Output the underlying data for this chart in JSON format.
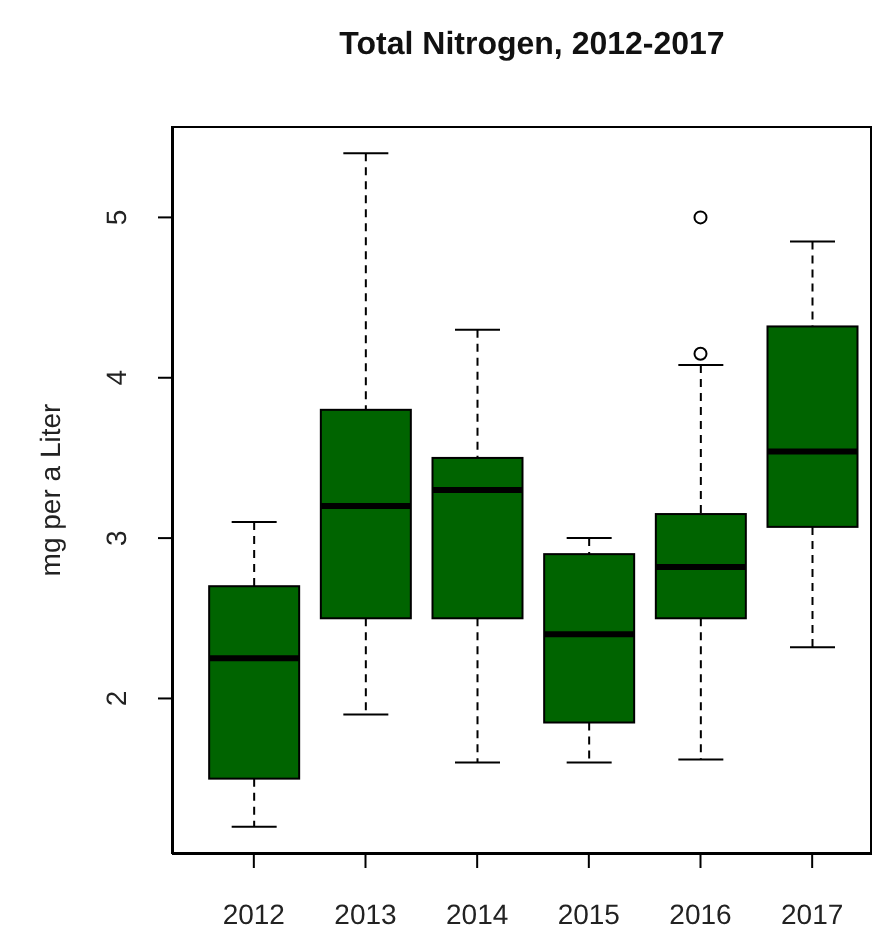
{
  "chart_data": {
    "type": "box",
    "title": "Total Nitrogen, 2012-2017",
    "ylabel": "mg per a Liter",
    "categories": [
      "2012",
      "2013",
      "2014",
      "2015",
      "2016",
      "2017"
    ],
    "color": "#006400",
    "ylim": [
      1.03,
      5.57
    ],
    "yticks": [
      2,
      3,
      4,
      5
    ],
    "boxes": [
      {
        "low": 1.2,
        "q1": 1.5,
        "median": 2.25,
        "q3": 2.7,
        "high": 3.1
      },
      {
        "low": 1.9,
        "q1": 2.5,
        "median": 3.2,
        "q3": 3.8,
        "high": 5.4
      },
      {
        "low": 1.6,
        "q1": 2.5,
        "median": 3.3,
        "q3": 3.5,
        "high": 4.3
      },
      {
        "low": 1.6,
        "q1": 1.85,
        "median": 2.4,
        "q3": 2.9,
        "high": 3.0
      },
      {
        "low": 1.62,
        "q1": 2.5,
        "median": 2.82,
        "q3": 3.15,
        "high": 4.08,
        "outliers": [
          4.15,
          5.0
        ]
      },
      {
        "low": 2.32,
        "q1": 3.07,
        "median": 3.54,
        "q3": 4.32,
        "high": 4.85
      }
    ]
  }
}
